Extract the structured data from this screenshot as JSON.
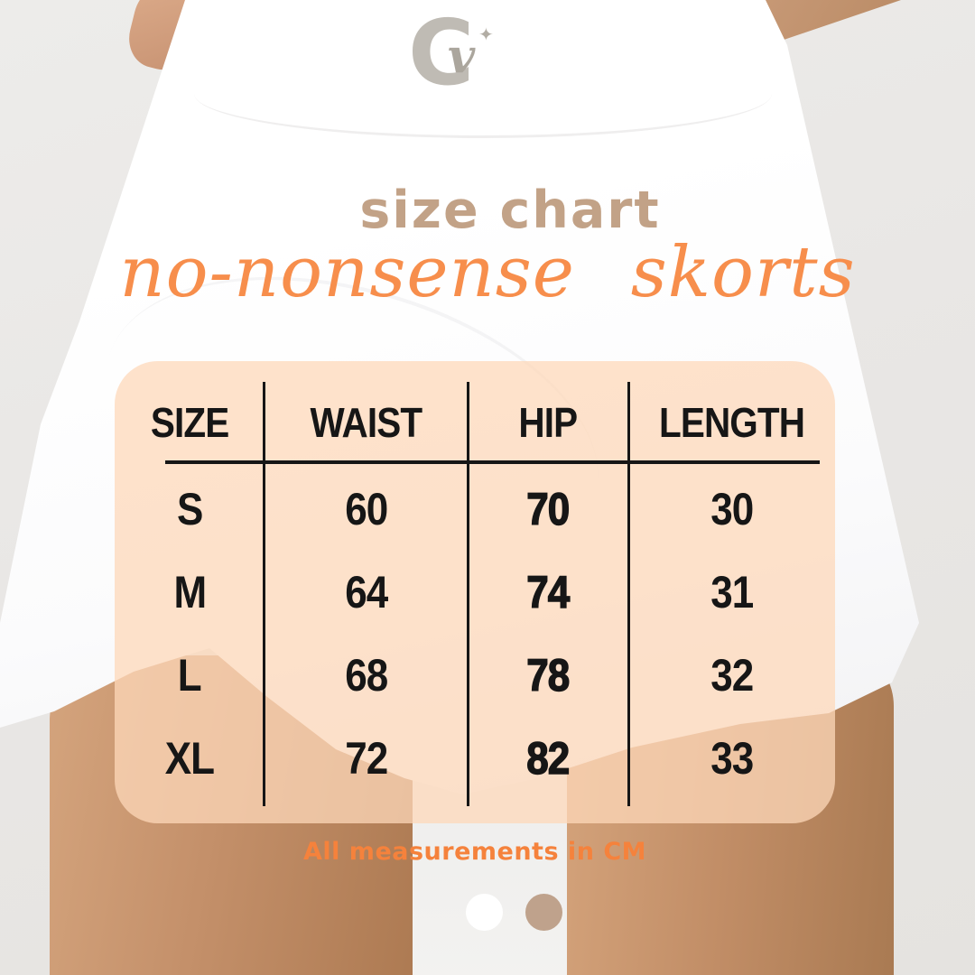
{
  "header": {
    "title": "size chart",
    "subtitle": "no-nonsense skorts"
  },
  "logo": {
    "monogram_outer": "C",
    "monogram_inner": "v",
    "sparkle": "✦"
  },
  "chart_data": {
    "type": "table",
    "title": "size chart",
    "subtitle": "no-nonsense skorts",
    "columns": [
      "SIZE",
      "WAIST",
      "HIP",
      "LENGTH"
    ],
    "rows": [
      [
        "S",
        "60",
        "70",
        "30"
      ],
      [
        "M",
        "64",
        "74",
        "31"
      ],
      [
        "L",
        "68",
        "78",
        "32"
      ],
      [
        "XL",
        "72",
        "82",
        "33"
      ]
    ],
    "units": "CM",
    "note": "All measurements in CM"
  },
  "footer": {
    "note": "All measurements in CM"
  },
  "carousel": {
    "dots": [
      {
        "label": "slide-1",
        "active": true,
        "color": "#FFFFFF"
      },
      {
        "label": "slide-2",
        "active": false,
        "color": "#BFA28C"
      }
    ]
  },
  "colors": {
    "accent_orange": "#F78E4C",
    "footnote_orange": "#F5823C",
    "title_tan": "#C2A287",
    "panel_peach": "#FBD8B9",
    "table_text": "#161616",
    "dot_active": "#FFFFFF",
    "dot_inactive": "#BFA28C",
    "background_gray": "#E9E7E5"
  }
}
